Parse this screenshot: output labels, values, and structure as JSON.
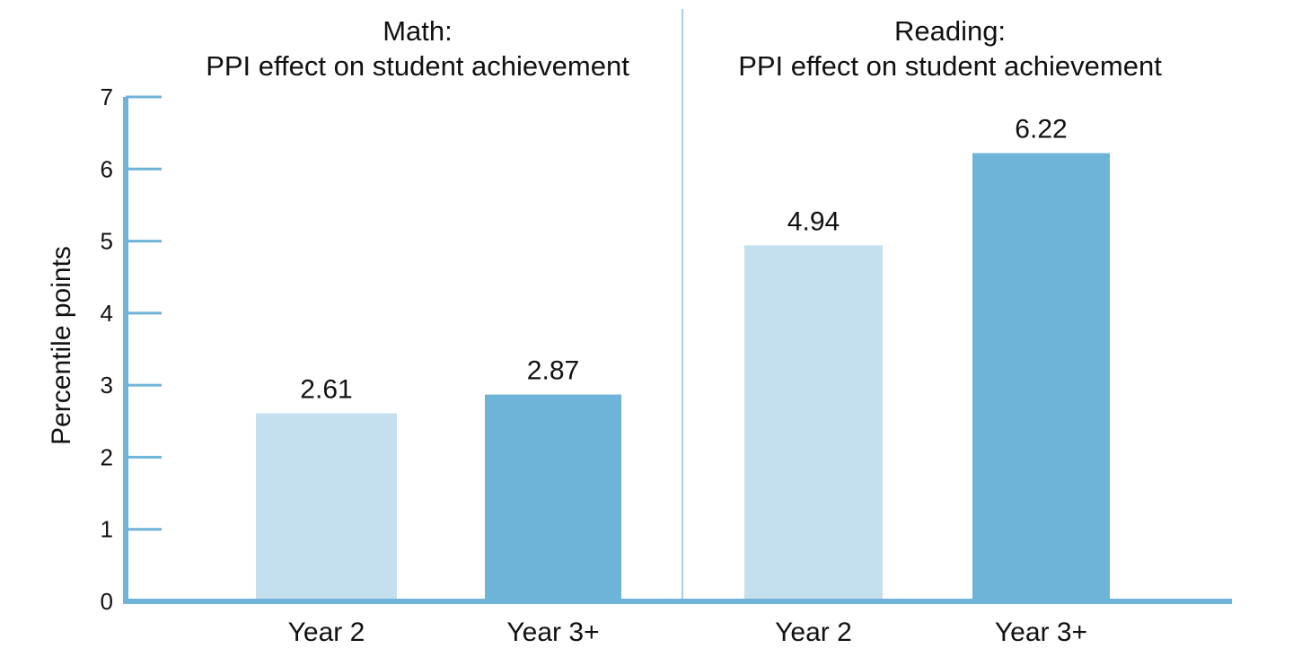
{
  "chart_data": {
    "type": "bar",
    "ylabel": "Percentile points",
    "ylim": [
      0,
      7
    ],
    "yticks": [
      "0",
      "1",
      "2",
      "3",
      "4",
      "5",
      "6",
      "7"
    ],
    "panels": [
      {
        "title_line1": "Math:",
        "title_line2": "PPI effect on student achievement",
        "bars": [
          {
            "category": "Year 2",
            "value": 2.61,
            "label": "2.61",
            "color": "#c4dff0"
          },
          {
            "category": "Year 3+",
            "value": 2.87,
            "label": "2.87",
            "color": "#6db4d8"
          }
        ]
      },
      {
        "title_line1": "Reading:",
        "title_line2": "PPI effect on student achievement",
        "bars": [
          {
            "category": "Year 2",
            "value": 4.94,
            "label": "4.94",
            "color": "#c4dff0"
          },
          {
            "category": "Year 3+",
            "value": 6.22,
            "label": "6.22",
            "color": "#6db4d8"
          }
        ]
      }
    ]
  }
}
